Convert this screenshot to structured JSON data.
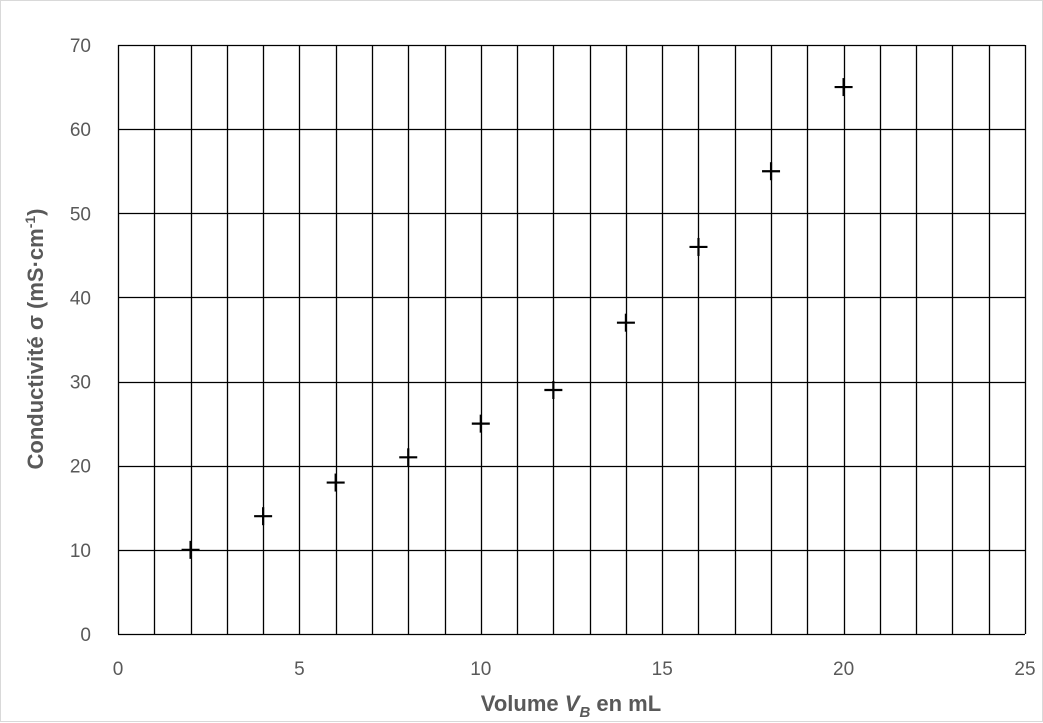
{
  "chart_data": {
    "type": "scatter",
    "title": "",
    "xlabel": {
      "prefix": "Volume ",
      "var": "V",
      "sub": "B",
      "suffix": " en mL"
    },
    "ylabel": {
      "main": "Conductivité σ (mS·cm",
      "sup": "-1",
      "close": ")"
    },
    "xlim": [
      0,
      25
    ],
    "ylim": [
      0,
      70
    ],
    "x_ticks": [
      0,
      5,
      10,
      15,
      20,
      25
    ],
    "y_ticks": [
      0,
      10,
      20,
      30,
      40,
      50,
      60,
      70
    ],
    "x_minor_grid_step": 1,
    "y_grid_step": 10,
    "grid": true,
    "marker": "plus",
    "colors": {
      "grid": "#000000",
      "marker": "#000000",
      "text": "#595959",
      "border": "#d9d9d9"
    },
    "series": [
      {
        "points": [
          {
            "x": 2,
            "y": 10
          },
          {
            "x": 4,
            "y": 14
          },
          {
            "x": 6,
            "y": 18
          },
          {
            "x": 8,
            "y": 21
          },
          {
            "x": 10,
            "y": 25
          },
          {
            "x": 12,
            "y": 29
          },
          {
            "x": 14,
            "y": 37
          },
          {
            "x": 16,
            "y": 46
          },
          {
            "x": 18,
            "y": 55
          },
          {
            "x": 20,
            "y": 65
          }
        ]
      }
    ]
  }
}
